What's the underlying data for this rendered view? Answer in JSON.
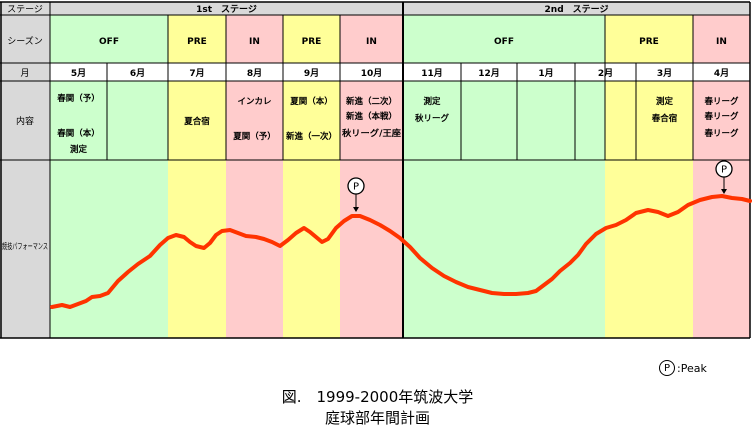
{
  "diagram": {
    "row_headers": {
      "stage": "ステージ",
      "season": "シーズン",
      "month": "月",
      "content": "内容",
      "performance": "競技パフォーマンス"
    },
    "stages": [
      {
        "label": "1st　ステージ"
      },
      {
        "label": "2nd　ステージ"
      }
    ],
    "phases": [
      {
        "label": "OFF",
        "color": "#ccffcc"
      },
      {
        "label": "PRE",
        "color": "#ffff99"
      },
      {
        "label": "IN",
        "color": "#ffcccc"
      },
      {
        "label": "PRE",
        "color": "#ffff99"
      },
      {
        "label": "IN",
        "color": "#ffcccc"
      },
      {
        "label": "OFF",
        "color": "#ccffcc"
      },
      {
        "label": "PRE",
        "color": "#ffff99"
      },
      {
        "label": "IN",
        "color": "#ffcccc"
      }
    ],
    "months": [
      "5月",
      "6月",
      "7月",
      "8月",
      "9月",
      "10月",
      "11月",
      "12月",
      "1月",
      "2月",
      "3月",
      "4月"
    ],
    "contents": [
      [
        "春関（予）",
        "春関（本）",
        "測定"
      ],
      [],
      [
        "夏合宿"
      ],
      [
        "インカレ",
        "夏関（予）"
      ],
      [
        "夏関（本）",
        "新進（一次）"
      ],
      [
        "新進（二次）",
        "新進（本戦）",
        "秋リーグ/王座"
      ],
      [
        "測定",
        "秋リーグ"
      ],
      [],
      [],
      [],
      [
        "測定",
        "春合宿"
      ],
      [
        "春リーグ",
        "春リーグ",
        "春リーグ"
      ]
    ],
    "peak_symbol": "P",
    "peak_legend": ":Peak",
    "line_color": "#ff3300"
  },
  "caption": {
    "line1": "図.　1999-2000年筑波大学",
    "line2": "庭球部年間計画"
  }
}
